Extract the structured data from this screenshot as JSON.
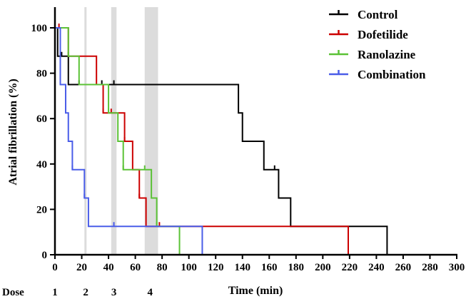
{
  "chart_data": {
    "type": "line",
    "xlabel": "Time (min)",
    "ylabel": "Atrial fibrillation (%)",
    "xlim": [
      0,
      300
    ],
    "ylim": [
      0,
      100
    ],
    "x_ticks": [
      "0",
      "20",
      "40",
      "60",
      "80",
      "100",
      "120",
      "140",
      "160",
      "180",
      "200",
      "220",
      "240",
      "260",
      "280",
      "300"
    ],
    "y_ticks": [
      "0",
      "20",
      "40",
      "60",
      "80",
      "100"
    ],
    "legend_position": "top-right",
    "grid": false,
    "dose_row_label": "Dose",
    "doses": [
      {
        "label": "1",
        "x": 0,
        "band": null
      },
      {
        "label": "2",
        "x": 23,
        "band": [
          22,
          23
        ]
      },
      {
        "label": "3",
        "x": 44,
        "band": [
          42,
          46
        ]
      },
      {
        "label": "4",
        "x": 71,
        "band": [
          67,
          77
        ]
      }
    ],
    "series": [
      {
        "name": "Control",
        "color": "#000000",
        "steps": [
          [
            0,
            100
          ],
          [
            2,
            87.5
          ],
          [
            10,
            75
          ],
          [
            137,
            62.5
          ],
          [
            140,
            50
          ],
          [
            156,
            37.5
          ],
          [
            167,
            25
          ],
          [
            176,
            12.5
          ],
          [
            248,
            0
          ]
        ],
        "censor_ticks": [
          [
            5,
            87.5
          ],
          [
            18,
            75
          ],
          [
            35,
            75
          ],
          [
            44,
            75
          ],
          [
            164,
            37.5
          ]
        ]
      },
      {
        "name": "Dofetilide",
        "color": "#cc0000",
        "steps": [
          [
            0,
            100
          ],
          [
            10,
            87.5
          ],
          [
            31,
            75
          ],
          [
            36,
            62.5
          ],
          [
            52,
            50
          ],
          [
            58,
            37.5
          ],
          [
            63,
            25
          ],
          [
            68,
            12.5
          ],
          [
            219,
            0
          ]
        ],
        "censor_ticks": [
          [
            3,
            100
          ],
          [
            10,
            87.5
          ],
          [
            36,
            62.5
          ],
          [
            42,
            62.5
          ],
          [
            52,
            50
          ],
          [
            63,
            25
          ],
          [
            78,
            12.5
          ]
        ]
      },
      {
        "name": "Ranolazine",
        "color": "#5bc236",
        "steps": [
          [
            0,
            100
          ],
          [
            10,
            87.5
          ],
          [
            18,
            75
          ],
          [
            40,
            62.5
          ],
          [
            47,
            50
          ],
          [
            51,
            37.5
          ],
          [
            72,
            25
          ],
          [
            76,
            12.5
          ],
          [
            93,
            0
          ]
        ],
        "censor_ticks": [
          [
            10,
            87.5
          ],
          [
            40,
            62.5
          ],
          [
            51,
            37.5
          ],
          [
            67,
            37.5
          ],
          [
            76,
            12.5
          ]
        ]
      },
      {
        "name": "Combination",
        "color": "#4a5de8",
        "steps": [
          [
            0,
            100
          ],
          [
            4,
            75
          ],
          [
            8,
            62.5
          ],
          [
            10,
            50
          ],
          [
            13,
            37.5
          ],
          [
            22,
            25
          ],
          [
            25,
            12.5
          ],
          [
            110,
            0
          ]
        ],
        "censor_ticks": [
          [
            8,
            62.5
          ],
          [
            13,
            37.5
          ],
          [
            22,
            25
          ],
          [
            44,
            12.5
          ]
        ]
      }
    ]
  }
}
